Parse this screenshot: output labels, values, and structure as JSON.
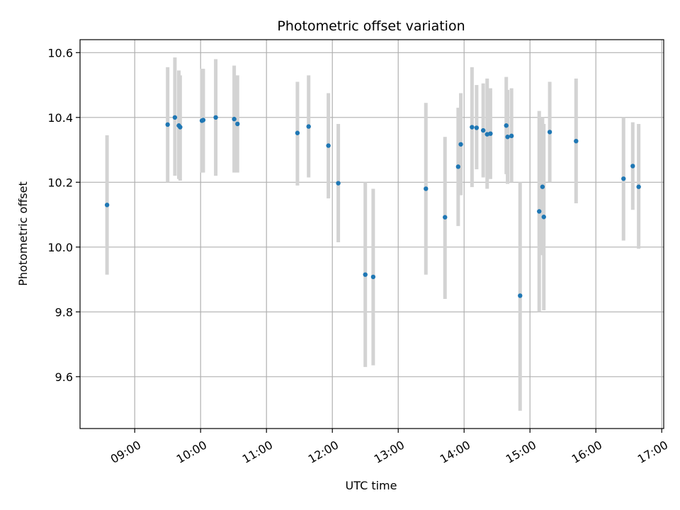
{
  "chart_data": {
    "type": "scatter",
    "title": "Photometric offset variation",
    "xlabel": "UTC time",
    "ylabel": "Photometric offset",
    "x_unit": "hours (UTC time of day)",
    "xlim": [
      8.17,
      17.03
    ],
    "ylim": [
      9.44,
      10.64
    ],
    "x_ticks": [
      {
        "value": 9,
        "label": "09:00"
      },
      {
        "value": 10,
        "label": "10:00"
      },
      {
        "value": 11,
        "label": "11:00"
      },
      {
        "value": 12,
        "label": "12:00"
      },
      {
        "value": 13,
        "label": "13:00"
      },
      {
        "value": 14,
        "label": "14:00"
      },
      {
        "value": 15,
        "label": "15:00"
      },
      {
        "value": 16,
        "label": "16:00"
      },
      {
        "value": 17,
        "label": "17:00"
      }
    ],
    "y_ticks": [
      {
        "value": 9.6,
        "label": "9.6"
      },
      {
        "value": 9.8,
        "label": "9.8"
      },
      {
        "value": 10.0,
        "label": "10.0"
      },
      {
        "value": 10.2,
        "label": "10.2"
      },
      {
        "value": 10.4,
        "label": "10.4"
      },
      {
        "value": 10.6,
        "label": "10.6"
      }
    ],
    "grid": true,
    "marker_color": "#1f77b4",
    "errorbar_color": "#d3d3d3",
    "points": [
      {
        "x": 8.58,
        "y": 10.13,
        "ylow": 9.915,
        "yhigh": 10.345
      },
      {
        "x": 9.5,
        "y": 10.378,
        "ylow": 10.2,
        "yhigh": 10.555
      },
      {
        "x": 9.61,
        "y": 10.4,
        "ylow": 10.22,
        "yhigh": 10.585
      },
      {
        "x": 9.67,
        "y": 10.375,
        "ylow": 10.21,
        "yhigh": 10.545
      },
      {
        "x": 9.69,
        "y": 10.37,
        "ylow": 10.205,
        "yhigh": 10.53
      },
      {
        "x": 10.02,
        "y": 10.39,
        "ylow": 10.23,
        "yhigh": 10.55
      },
      {
        "x": 10.04,
        "y": 10.392,
        "ylow": 10.23,
        "yhigh": 10.55
      },
      {
        "x": 10.23,
        "y": 10.4,
        "ylow": 10.22,
        "yhigh": 10.58
      },
      {
        "x": 10.51,
        "y": 10.395,
        "ylow": 10.23,
        "yhigh": 10.56
      },
      {
        "x": 10.56,
        "y": 10.38,
        "ylow": 10.23,
        "yhigh": 10.53
      },
      {
        "x": 11.47,
        "y": 10.352,
        "ylow": 10.19,
        "yhigh": 10.51
      },
      {
        "x": 11.64,
        "y": 10.372,
        "ylow": 10.215,
        "yhigh": 10.53
      },
      {
        "x": 11.94,
        "y": 10.313,
        "ylow": 10.15,
        "yhigh": 10.475
      },
      {
        "x": 12.09,
        "y": 10.197,
        "ylow": 10.015,
        "yhigh": 10.38
      },
      {
        "x": 12.5,
        "y": 9.915,
        "ylow": 9.63,
        "yhigh": 10.2
      },
      {
        "x": 12.62,
        "y": 9.908,
        "ylow": 9.635,
        "yhigh": 10.18
      },
      {
        "x": 13.42,
        "y": 10.18,
        "ylow": 9.915,
        "yhigh": 10.445
      },
      {
        "x": 13.71,
        "y": 10.092,
        "ylow": 9.84,
        "yhigh": 10.34
      },
      {
        "x": 13.91,
        "y": 10.248,
        "ylow": 10.065,
        "yhigh": 10.43
      },
      {
        "x": 13.95,
        "y": 10.317,
        "ylow": 10.16,
        "yhigh": 10.475
      },
      {
        "x": 14.12,
        "y": 10.37,
        "ylow": 10.185,
        "yhigh": 10.555
      },
      {
        "x": 14.19,
        "y": 10.368,
        "ylow": 10.24,
        "yhigh": 10.5
      },
      {
        "x": 14.29,
        "y": 10.36,
        "ylow": 10.215,
        "yhigh": 10.505
      },
      {
        "x": 14.35,
        "y": 10.348,
        "ylow": 10.18,
        "yhigh": 10.52
      },
      {
        "x": 14.4,
        "y": 10.35,
        "ylow": 10.21,
        "yhigh": 10.49
      },
      {
        "x": 14.64,
        "y": 10.375,
        "ylow": 10.225,
        "yhigh": 10.525
      },
      {
        "x": 14.66,
        "y": 10.34,
        "ylow": 10.195,
        "yhigh": 10.485
      },
      {
        "x": 14.72,
        "y": 10.343,
        "ylow": 10.2,
        "yhigh": 10.49
      },
      {
        "x": 14.85,
        "y": 9.85,
        "ylow": 9.495,
        "yhigh": 10.2
      },
      {
        "x": 15.14,
        "y": 10.11,
        "ylow": 9.8,
        "yhigh": 10.42
      },
      {
        "x": 15.19,
        "y": 10.186,
        "ylow": 9.975,
        "yhigh": 10.4
      },
      {
        "x": 15.21,
        "y": 10.093,
        "ylow": 9.805,
        "yhigh": 10.38
      },
      {
        "x": 15.3,
        "y": 10.355,
        "ylow": 10.2,
        "yhigh": 10.51
      },
      {
        "x": 15.7,
        "y": 10.327,
        "ylow": 10.135,
        "yhigh": 10.52
      },
      {
        "x": 16.42,
        "y": 10.211,
        "ylow": 10.02,
        "yhigh": 10.4
      },
      {
        "x": 16.56,
        "y": 10.25,
        "ylow": 10.115,
        "yhigh": 10.385
      },
      {
        "x": 16.65,
        "y": 10.186,
        "ylow": 9.995,
        "yhigh": 10.38
      }
    ]
  }
}
